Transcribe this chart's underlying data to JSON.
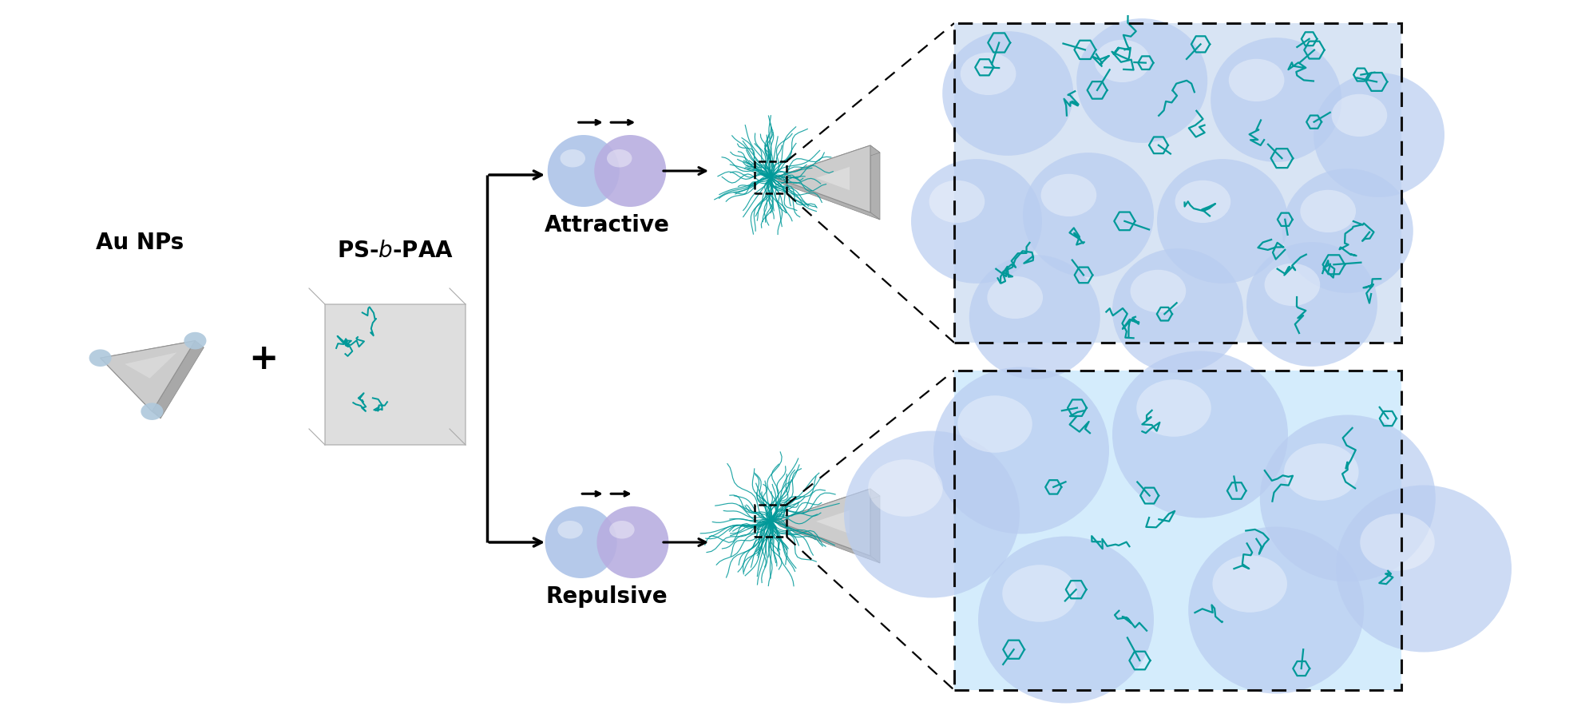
{
  "bg_color": "#ffffff",
  "au_nps_label": "Au NPs",
  "ps_bpaa_label": "PS-$\\bm{b}$-PAA",
  "attractive_label": "Attractive",
  "repulsive_label": "Repulsive",
  "label_fontsize": 20,
  "sphere_blue": "#adc4e8",
  "sphere_purple": "#b8aee0",
  "sphere_highlight": "#dce8f8",
  "triangle_face": "#cccccc",
  "triangle_side": "#aaaaaa",
  "triangle_tip": "#aec8dc",
  "polymer_color": "#009999",
  "box_edge": "#666666",
  "zoom_box_top_bg": "#d8e8f8",
  "zoom_box_bot_bg": "#d4eaf8"
}
